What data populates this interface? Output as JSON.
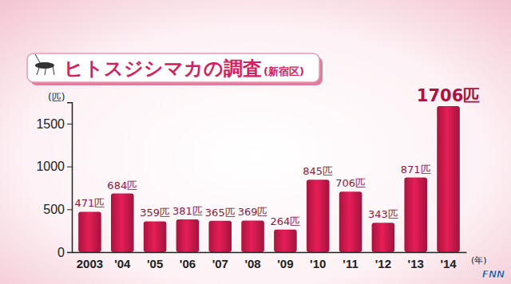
{
  "chart_data": {
    "type": "bar",
    "title": "ヒトスジシマカの調査",
    "subtitle": "(新宿区)",
    "x_label": "(年)",
    "y_label": "(匹)",
    "categories": [
      "2003",
      "'04",
      "'05",
      "'06",
      "'07",
      "'08",
      "'09",
      "'10",
      "'11",
      "'12",
      "'13",
      "'14"
    ],
    "values": [
      471,
      684,
      359,
      381,
      365,
      369,
      264,
      845,
      706,
      343,
      871,
      1706
    ],
    "value_labels": [
      "471匹",
      "684匹",
      "359匹",
      "381匹",
      "365匹",
      "369匹",
      "264匹",
      "845匹",
      "706匹",
      "343匹",
      "871匹",
      "1706匹"
    ],
    "data_labels": true,
    "color": "#c8194b",
    "ylim": [
      0,
      1750
    ],
    "yticks": [
      0,
      500,
      1000,
      1500
    ],
    "grid": false,
    "annotations": [
      "FNN"
    ]
  }
}
